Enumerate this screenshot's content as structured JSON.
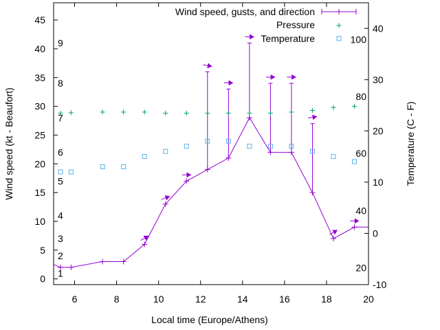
{
  "chart_data": {
    "type": "line",
    "xlabel": "Local time (Europe/Athens)",
    "ylabel": "Wind speed (kt - Beaufort)",
    "y2label": "Temperature (C - F)",
    "xlim": [
      5,
      20
    ],
    "ylim": [
      -1,
      48
    ],
    "y2lim": [
      -10,
      45
    ],
    "grid": false,
    "legend_position": "top-right",
    "x_ticks": [
      6,
      8,
      10,
      12,
      14,
      16,
      18,
      20
    ],
    "y_ticks": [
      0,
      5,
      10,
      15,
      20,
      25,
      30,
      35,
      40,
      45
    ],
    "y2_ticks": [
      -10,
      0,
      10,
      20,
      30,
      40
    ],
    "beaufort_labels": [
      {
        "text": "1",
        "y": 1
      },
      {
        "text": "2",
        "y": 4
      },
      {
        "text": "3",
        "y": 7
      },
      {
        "text": "4",
        "y": 11
      },
      {
        "text": "5",
        "y": 17
      },
      {
        "text": "6",
        "y": 22
      },
      {
        "text": "7",
        "y": 28
      },
      {
        "text": "8",
        "y": 34
      },
      {
        "text": "9",
        "y": 41
      }
    ],
    "fahrenheit_labels": [
      {
        "text": "20",
        "c": -6.7
      },
      {
        "text": "40",
        "c": 4.4
      },
      {
        "text": "60",
        "c": 15.6
      },
      {
        "text": "80",
        "c": 26.7
      },
      {
        "text": "100",
        "c": 37.8
      }
    ],
    "colors": {
      "wind": "#9400d3",
      "pressure": "#009e73",
      "temperature": "#56b4e9"
    },
    "series": [
      {
        "name": "Wind speed, gusts, and direction",
        "type": "line",
        "x": [
          5.0,
          5.33,
          5.83,
          7.33,
          8.33,
          9.33,
          10.33,
          11.33,
          12.33,
          13.33,
          14.33,
          15.33,
          16.33,
          17.33,
          18.33,
          19.33,
          20.0
        ],
        "y": [
          2.5,
          2,
          2,
          3,
          3,
          6,
          13,
          17,
          19,
          21,
          28,
          22,
          22,
          15,
          7,
          9,
          9
        ],
        "gusts": [
          null,
          null,
          null,
          null,
          null,
          null,
          null,
          null,
          36,
          33,
          41,
          34,
          34,
          27,
          null,
          null,
          null
        ],
        "direction_deg": [
          null,
          null,
          null,
          null,
          null,
          30,
          20,
          0,
          -10,
          0,
          0,
          0,
          0,
          10,
          30,
          0,
          null
        ]
      },
      {
        "name": "Pressure",
        "type": "scatter",
        "x": [
          5.33,
          5.83,
          7.33,
          8.33,
          9.33,
          10.33,
          11.33,
          12.33,
          13.33,
          14.33,
          15.33,
          16.33,
          17.33,
          18.33,
          19.33
        ],
        "y": [
          28.8,
          28.9,
          29.0,
          29.0,
          29.0,
          28.8,
          28.8,
          28.8,
          28.8,
          28.8,
          28.8,
          29.0,
          29.3,
          29.8,
          30.0
        ]
      },
      {
        "name": "Temperature",
        "type": "scatter",
        "axis": "y2",
        "x": [
          5.33,
          5.83,
          7.33,
          8.33,
          9.33,
          10.33,
          11.33,
          12.33,
          13.33,
          14.33,
          15.33,
          16.33,
          17.33,
          18.33,
          19.33
        ],
        "y": [
          12,
          12,
          13,
          13,
          15,
          16,
          17,
          18,
          18,
          17,
          17,
          17,
          16,
          15,
          14
        ]
      }
    ]
  }
}
